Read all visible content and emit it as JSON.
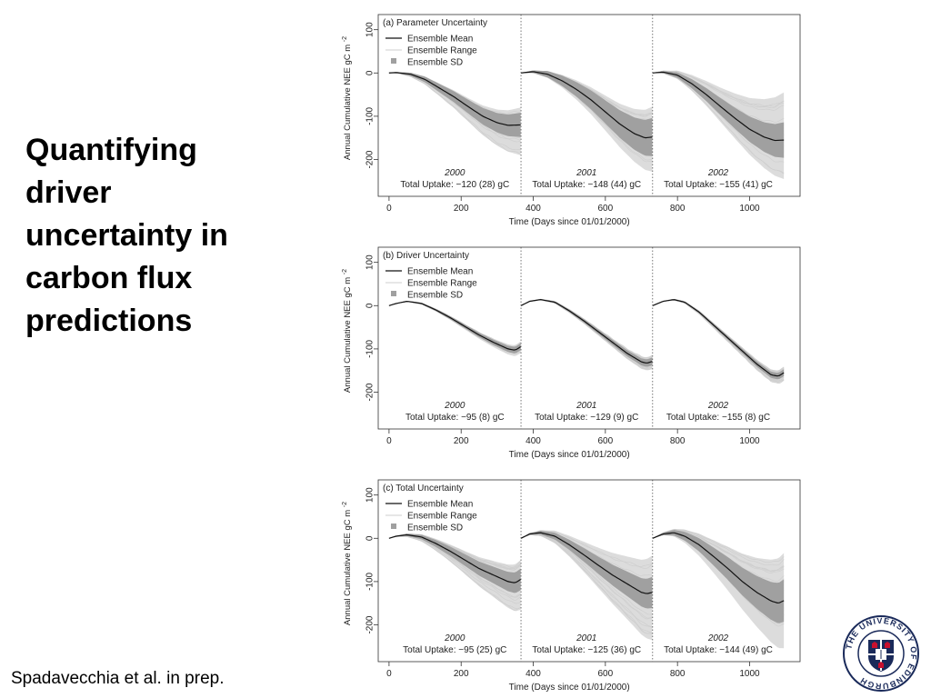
{
  "slide": {
    "title_lines": [
      "Quantifying",
      "driver",
      "uncertainty in",
      "carbon flux",
      "predictions"
    ],
    "citation": "Spadavecchia et al. in prep."
  },
  "logo": {
    "text": "THE UNIVERSITY OF EDINBURGH"
  },
  "chart_data": [
    {
      "type": "line",
      "title": "(a) Parameter Uncertainty",
      "xlabel": "Time (Days since 01/01/2000)",
      "ylabel": "Annual Cumulative NEE gC m",
      "ylabel_sup": "-2",
      "xlim": [
        -30,
        1140
      ],
      "ylim": [
        -285,
        135
      ],
      "xticks": [
        0,
        200,
        400,
        600,
        800,
        1000
      ],
      "yticks": [
        100,
        0,
        -100,
        -200
      ],
      "legend": {
        "position": "top-left",
        "entries": [
          "Ensemble Mean",
          "Ensemble Range",
          "Ensemble SD"
        ]
      },
      "year_boundaries": [
        366,
        731
      ],
      "years": [
        {
          "label": "2000",
          "uptake": "Total Uptake: −120 (28) gC",
          "start": 0,
          "end": 365,
          "mean": [
            [
              0,
              0
            ],
            [
              20,
              1
            ],
            [
              60,
              -3
            ],
            [
              100,
              -15
            ],
            [
              140,
              -35
            ],
            [
              180,
              -55
            ],
            [
              220,
              -78
            ],
            [
              260,
              -100
            ],
            [
              300,
              -115
            ],
            [
              330,
              -121
            ],
            [
              365,
              -120
            ]
          ],
          "sd_half": 28,
          "range_low_max": 70,
          "range_high_max": 40
        },
        {
          "label": "2001",
          "uptake": "Total Uptake: −148 (44) gC",
          "start": 366,
          "end": 730,
          "mean": [
            [
              366,
              0
            ],
            [
              400,
              3
            ],
            [
              440,
              -3
            ],
            [
              480,
              -18
            ],
            [
              520,
              -38
            ],
            [
              560,
              -62
            ],
            [
              600,
              -90
            ],
            [
              640,
              -118
            ],
            [
              680,
              -140
            ],
            [
              710,
              -150
            ],
            [
              730,
              -148
            ]
          ],
          "sd_half": 44,
          "range_low_max": 80,
          "range_high_max": 70
        },
        {
          "label": "2002",
          "uptake": "Total Uptake: −155 (41) gC",
          "start": 731,
          "end": 1095,
          "mean": [
            [
              731,
              0
            ],
            [
              760,
              2
            ],
            [
              800,
              -5
            ],
            [
              840,
              -25
            ],
            [
              880,
              -50
            ],
            [
              920,
              -78
            ],
            [
              960,
              -105
            ],
            [
              1000,
              -130
            ],
            [
              1040,
              -148
            ],
            [
              1070,
              -156
            ],
            [
              1095,
              -155
            ]
          ],
          "sd_half": 41,
          "range_low_max": 90,
          "range_high_max": 110
        }
      ]
    },
    {
      "type": "line",
      "title": "(b) Driver Uncertainty",
      "xlabel": "Time (Days since 01/01/2000)",
      "ylabel": "Annual Cumulative NEE gC m",
      "ylabel_sup": "-2",
      "xlim": [
        -30,
        1140
      ],
      "ylim": [
        -285,
        135
      ],
      "xticks": [
        0,
        200,
        400,
        600,
        800,
        1000
      ],
      "yticks": [
        100,
        0,
        -100,
        -200
      ],
      "legend": {
        "position": "top-left",
        "entries": [
          "Ensemble Mean",
          "Ensemble Range",
          "Ensemble SD"
        ]
      },
      "year_boundaries": [
        366,
        731
      ],
      "years": [
        {
          "label": "2000",
          "uptake": "Total Uptake: −95 (8) gC",
          "start": 0,
          "end": 365,
          "mean": [
            [
              0,
              0
            ],
            [
              20,
              5
            ],
            [
              50,
              10
            ],
            [
              90,
              5
            ],
            [
              130,
              -10
            ],
            [
              170,
              -28
            ],
            [
              210,
              -48
            ],
            [
              250,
              -68
            ],
            [
              290,
              -85
            ],
            [
              330,
              -100
            ],
            [
              350,
              -103
            ],
            [
              365,
              -95
            ]
          ],
          "sd_half": 8,
          "range_low_max": 15,
          "range_high_max": 12
        },
        {
          "label": "2001",
          "uptake": "Total Uptake: −129 (9) gC",
          "start": 366,
          "end": 730,
          "mean": [
            [
              366,
              0
            ],
            [
              390,
              10
            ],
            [
              420,
              14
            ],
            [
              460,
              8
            ],
            [
              500,
              -12
            ],
            [
              540,
              -35
            ],
            [
              580,
              -60
            ],
            [
              620,
              -85
            ],
            [
              660,
              -110
            ],
            [
              700,
              -130
            ],
            [
              715,
              -133
            ],
            [
              730,
              -129
            ]
          ],
          "sd_half": 9,
          "range_low_max": 18,
          "range_high_max": 14
        },
        {
          "label": "2002",
          "uptake": "Total Uptake: −155 (8) gC",
          "start": 731,
          "end": 1095,
          "mean": [
            [
              731,
              0
            ],
            [
              760,
              10
            ],
            [
              790,
              14
            ],
            [
              820,
              8
            ],
            [
              860,
              -15
            ],
            [
              900,
              -45
            ],
            [
              940,
              -75
            ],
            [
              980,
              -105
            ],
            [
              1020,
              -135
            ],
            [
              1060,
              -160
            ],
            [
              1080,
              -163
            ],
            [
              1095,
              -155
            ]
          ],
          "sd_half": 8,
          "range_low_max": 18,
          "range_high_max": 14
        }
      ]
    },
    {
      "type": "line",
      "title": "(c) Total Uncertainty",
      "xlabel": "Time (Days since 01/01/2000)",
      "ylabel": "Annual Cumulative NEE gC m",
      "ylabel_sup": "-2",
      "xlim": [
        -30,
        1140
      ],
      "ylim": [
        -285,
        135
      ],
      "xticks": [
        0,
        200,
        400,
        600,
        800,
        1000
      ],
      "yticks": [
        100,
        0,
        -100,
        -200
      ],
      "legend": {
        "position": "top-left",
        "entries": [
          "Ensemble Mean",
          "Ensemble Range",
          "Ensemble SD"
        ]
      },
      "year_boundaries": [
        366,
        731
      ],
      "years": [
        {
          "label": "2000",
          "uptake": "Total Uptake: −95 (25) gC",
          "start": 0,
          "end": 365,
          "mean": [
            [
              0,
              0
            ],
            [
              20,
              5
            ],
            [
              50,
              8
            ],
            [
              90,
              3
            ],
            [
              130,
              -12
            ],
            [
              170,
              -30
            ],
            [
              210,
              -50
            ],
            [
              250,
              -70
            ],
            [
              290,
              -85
            ],
            [
              330,
              -100
            ],
            [
              350,
              -103
            ],
            [
              365,
              -95
            ]
          ],
          "sd_half": 25,
          "range_low_max": 70,
          "range_high_max": 45
        },
        {
          "label": "2001",
          "uptake": "Total Uptake: −125 (36) gC",
          "start": 366,
          "end": 730,
          "mean": [
            [
              366,
              0
            ],
            [
              390,
              10
            ],
            [
              420,
              13
            ],
            [
              460,
              5
            ],
            [
              500,
              -15
            ],
            [
              540,
              -38
            ],
            [
              580,
              -62
            ],
            [
              620,
              -85
            ],
            [
              660,
              -105
            ],
            [
              700,
              -125
            ],
            [
              715,
              -128
            ],
            [
              730,
              -125
            ]
          ],
          "sd_half": 36,
          "range_low_max": 110,
          "range_high_max": 85
        },
        {
          "label": "2002",
          "uptake": "Total Uptake: −144 (49) gC",
          "start": 731,
          "end": 1095,
          "mean": [
            [
              731,
              0
            ],
            [
              760,
              10
            ],
            [
              790,
              13
            ],
            [
              820,
              5
            ],
            [
              860,
              -15
            ],
            [
              900,
              -42
            ],
            [
              940,
              -70
            ],
            [
              980,
              -100
            ],
            [
              1020,
              -125
            ],
            [
              1060,
              -145
            ],
            [
              1080,
              -150
            ],
            [
              1095,
              -144
            ]
          ],
          "sd_half": 49,
          "range_low_max": 110,
          "range_high_max": 110
        }
      ]
    }
  ]
}
